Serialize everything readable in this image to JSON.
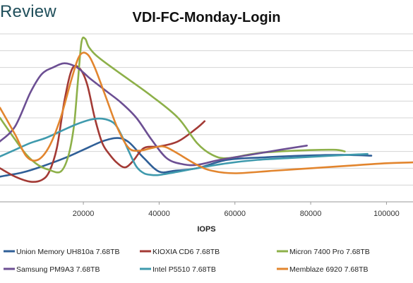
{
  "brand": "Review",
  "chart_data": {
    "type": "line",
    "title": "VDI-FC-Monday-Login",
    "xlabel": "IOPS",
    "ylabel": "",
    "xlim": [
      -2000,
      107000
    ],
    "ylim": [
      0,
      10
    ],
    "x_ticks": [
      20000,
      40000,
      60000,
      80000,
      100000
    ],
    "x_tick_labels": [
      "20000",
      "40000",
      "60000",
      "80000",
      "100000"
    ],
    "grid": "horizontal",
    "legend_position": "bottom",
    "series": [
      {
        "name": "Union Memory UH810a 7.68TB",
        "color": "#2f5f97",
        "x": [
          -2000,
          500,
          4000,
          9000,
          15000,
          20000,
          25000,
          29000,
          32000,
          36000,
          40000,
          44000,
          50000,
          58000,
          68000,
          78000,
          88000,
          96000
        ],
        "y": [
          1.5,
          1.6,
          1.75,
          2.1,
          2.6,
          3.1,
          3.6,
          3.8,
          3.55,
          2.6,
          1.8,
          1.85,
          2.0,
          2.5,
          2.65,
          2.75,
          2.8,
          2.75
        ]
      },
      {
        "name": "KIOXIA CD6 7.68TB",
        "color": "#a33a35",
        "x": [
          -2000,
          2000,
          6000,
          9000,
          11000,
          13000,
          15000,
          17000,
          19000,
          21000,
          23000,
          25000,
          27000,
          29000,
          31000,
          33000,
          36000,
          40000,
          45000,
          50000,
          52000
        ],
        "y": [
          2.0,
          1.5,
          1.2,
          1.3,
          1.8,
          3.2,
          6.0,
          7.9,
          7.95,
          7.0,
          5.0,
          3.5,
          2.8,
          2.3,
          2.05,
          2.4,
          3.2,
          3.3,
          3.6,
          4.4,
          4.8
        ]
      },
      {
        "name": "Micron 7400 Pro 7.68TB",
        "color": "#8db049",
        "x": [
          -2000,
          2000,
          5000,
          8000,
          11000,
          14000,
          16000,
          17500,
          18500,
          19500,
          20500,
          21500,
          24000,
          30000,
          38000,
          45000,
          50000,
          54000,
          58000,
          66000,
          76000,
          86000,
          89000
        ],
        "y": [
          5.0,
          3.7,
          2.8,
          2.2,
          1.9,
          1.8,
          2.7,
          4.5,
          7.0,
          9.5,
          9.7,
          9.2,
          8.6,
          7.6,
          6.3,
          5.0,
          3.5,
          2.8,
          2.6,
          2.9,
          3.05,
          3.1,
          3.0
        ]
      },
      {
        "name": "Samsung PM9A3 7.68TB",
        "color": "#6c4f93",
        "x": [
          -2000,
          2000,
          6000,
          9000,
          12000,
          15000,
          18000,
          20000,
          22000,
          26000,
          30000,
          34000,
          38000,
          42000,
          46000,
          50000,
          56000,
          64000,
          72000,
          79000
        ],
        "y": [
          3.6,
          4.5,
          6.5,
          7.6,
          8.0,
          8.25,
          8.05,
          7.7,
          7.3,
          6.6,
          5.9,
          5.0,
          3.7,
          2.6,
          2.25,
          2.2,
          2.5,
          2.8,
          3.1,
          3.35
        ]
      },
      {
        "name": "Intel P5510 7.68TB",
        "color": "#3f9aad",
        "x": [
          -2000,
          2000,
          6000,
          10000,
          14000,
          18000,
          22000,
          25000,
          28000,
          30000,
          32000,
          34000,
          36000,
          38000,
          40000,
          44000,
          50000,
          58000,
          66000,
          74000,
          82000,
          90000,
          95000
        ],
        "y": [
          2.7,
          3.1,
          3.5,
          3.8,
          4.2,
          4.6,
          4.9,
          4.95,
          4.7,
          4.0,
          3.0,
          2.1,
          1.7,
          1.6,
          1.6,
          1.75,
          2.0,
          2.3,
          2.5,
          2.6,
          2.7,
          2.8,
          2.85
        ]
      },
      {
        "name": "Memblaze 6920 7.68TB",
        "color": "#e2852e",
        "x": [
          -2000,
          2000,
          5000,
          8000,
          11000,
          14000,
          17000,
          19000,
          21000,
          23000,
          26000,
          29000,
          32000,
          35000,
          38000,
          41000,
          44000,
          50000,
          54000,
          60000,
          70000,
          80000,
          90000,
          100000,
          107000
        ],
        "y": [
          5.6,
          4.0,
          2.7,
          2.5,
          3.3,
          5.0,
          7.4,
          8.7,
          8.8,
          8.0,
          6.2,
          4.4,
          3.2,
          3.05,
          3.2,
          3.3,
          3.0,
          2.2,
          1.85,
          1.7,
          1.85,
          2.0,
          2.15,
          2.3,
          2.35
        ]
      }
    ]
  }
}
